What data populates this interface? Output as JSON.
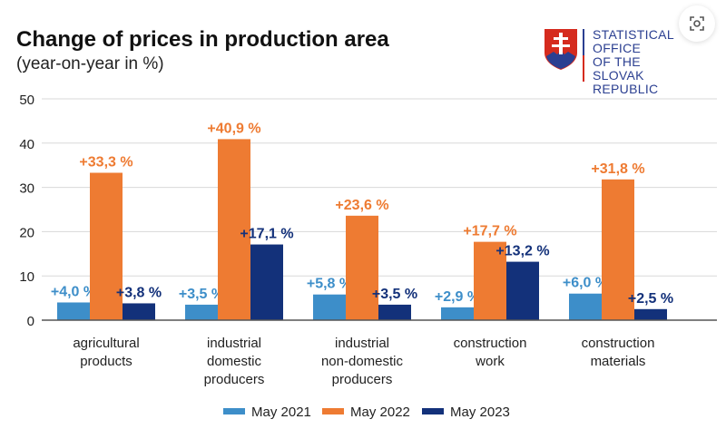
{
  "chart_data": {
    "type": "bar",
    "title": "Change of prices in production area",
    "subtitle": "(year-on-year in %)",
    "categories": [
      [
        "agricultural",
        "products"
      ],
      [
        "industrial",
        "domestic",
        "producers"
      ],
      [
        "industrial",
        "non-domestic",
        "producers"
      ],
      [
        "construction",
        "work"
      ],
      [
        "construction",
        "materials"
      ]
    ],
    "series": [
      {
        "name": "May 2021",
        "color": "#3d8ec9",
        "values": [
          4.0,
          3.5,
          5.8,
          2.9,
          6.0
        ],
        "labels": [
          "+4,0 %",
          "+3,5 %",
          "+5,8 %",
          "+2,9 %",
          "+6,0 %"
        ]
      },
      {
        "name": "May 2022",
        "color": "#ee7b32",
        "values": [
          33.3,
          40.9,
          23.6,
          17.7,
          31.8
        ],
        "labels": [
          "+33,3 %",
          "+40,9 %",
          "+23,6 %",
          "+17,7 %",
          "+31,8 %"
        ]
      },
      {
        "name": "May 2023",
        "color": "#13317a",
        "values": [
          3.8,
          17.1,
          3.5,
          13.2,
          2.5
        ],
        "labels": [
          "+3,8 %",
          "+17,1 %",
          "+3,5 %",
          "+13,2 %",
          "+2,5 %"
        ]
      }
    ],
    "ylim": [
      0,
      50
    ],
    "yticks": [
      0,
      10,
      20,
      30,
      40,
      50
    ],
    "grid": true,
    "legend": "bottom"
  },
  "logo": {
    "text": [
      "STATISTICAL",
      "OFFICE",
      "OF THE SLOVAK",
      "REPUBLIC"
    ]
  },
  "icons": {
    "lens": "lens-scan-icon"
  }
}
